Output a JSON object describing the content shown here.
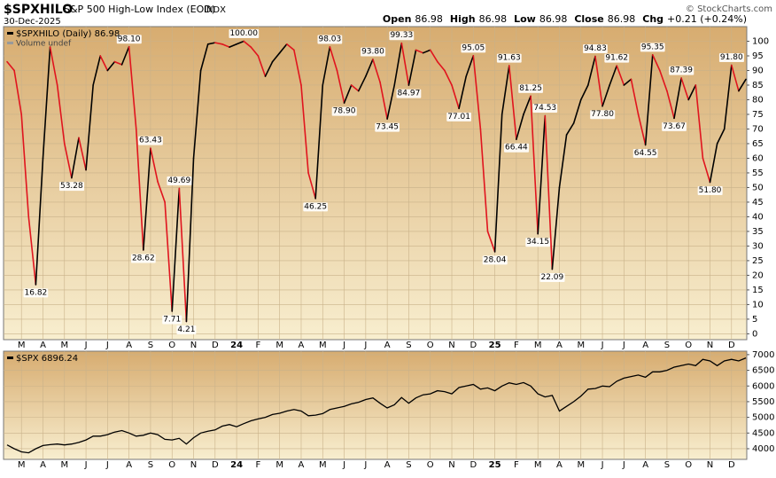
{
  "header": {
    "symbol": "$SPXHILO",
    "name": "S&P 500 High-Low Index (EOD)",
    "exchange": "INDX",
    "date": "30-Dec-2025",
    "copyright": "© StockCharts.com",
    "quote": [
      {
        "label": "Open",
        "value": "86.98"
      },
      {
        "label": "High",
        "value": "86.98"
      },
      {
        "label": "Low",
        "value": "86.98"
      },
      {
        "label": "Close",
        "value": "86.98"
      },
      {
        "label": "Chg",
        "value": "+0.21 (+0.24%)"
      }
    ]
  },
  "chart_data": [
    {
      "type": "line",
      "legend": [
        "$SPXHILO (Daily) 86.98",
        "Volume undef"
      ],
      "color_up": "#000000",
      "color_down": "#e0141e",
      "categories": [
        null,
        null,
        "M",
        null,
        null,
        "A",
        null,
        null,
        "M",
        null,
        null,
        "J",
        null,
        null,
        "J",
        null,
        null,
        "A",
        null,
        null,
        "S",
        null,
        null,
        "O",
        null,
        null,
        "N",
        null,
        null,
        "D",
        null,
        null,
        "24",
        null,
        null,
        "F",
        null,
        null,
        "M",
        null,
        null,
        "A",
        null,
        null,
        "M",
        null,
        null,
        "J",
        null,
        null,
        "J",
        null,
        null,
        "A",
        null,
        null,
        "S",
        null,
        null,
        "O",
        null,
        null,
        "N",
        null,
        null,
        "D",
        null,
        null,
        "25",
        null,
        null,
        "F",
        null,
        null,
        "M",
        null,
        null,
        "A",
        null,
        null,
        "M",
        null,
        null,
        "J",
        null,
        null,
        "J",
        null,
        null,
        "A",
        null,
        null,
        "S",
        null,
        null,
        "O",
        null,
        null,
        "N",
        null,
        null,
        "D",
        null,
        null
      ],
      "values": [
        93,
        90,
        75,
        40,
        16.82,
        60,
        98,
        85,
        65,
        53.28,
        67,
        56,
        85,
        95,
        90,
        93,
        92,
        98.1,
        70,
        28.62,
        63.43,
        52,
        45,
        7.71,
        49.69,
        4.21,
        60,
        90,
        99,
        99.5,
        99,
        98,
        99,
        100,
        98,
        95,
        88,
        93,
        96,
        99,
        97,
        85,
        55,
        46.25,
        85,
        98.03,
        90,
        78.9,
        85,
        83,
        88,
        93.8,
        86,
        73.45,
        85,
        99.33,
        84.97,
        97,
        96,
        97,
        93,
        90,
        85,
        77.01,
        88,
        95.05,
        70,
        35,
        28.04,
        75,
        91.63,
        66.44,
        75,
        81.25,
        34.15,
        74.53,
        22.09,
        50,
        68,
        72,
        80,
        85,
        94.83,
        77.8,
        85,
        91.62,
        85,
        87,
        75,
        64.55,
        95.35,
        90,
        83,
        73.67,
        87.39,
        80,
        85,
        60,
        51.8,
        65,
        70,
        91.8,
        83,
        86.98
      ],
      "value_labels": [
        null,
        null,
        null,
        null,
        "16.82",
        null,
        null,
        null,
        null,
        "53.28",
        null,
        null,
        null,
        null,
        null,
        null,
        null,
        "98.10",
        null,
        "28.62",
        "63.43",
        null,
        null,
        "7.71",
        "49.69",
        "4.21",
        null,
        null,
        null,
        null,
        null,
        null,
        null,
        "100.00",
        null,
        null,
        null,
        null,
        null,
        null,
        null,
        null,
        null,
        "46.25",
        null,
        "98.03",
        null,
        "78.90",
        null,
        null,
        null,
        "93.80",
        null,
        "73.45",
        null,
        "99.33",
        "84.97",
        null,
        null,
        null,
        null,
        null,
        null,
        "77.01",
        null,
        "95.05",
        null,
        null,
        "28.04",
        null,
        "91.63",
        "66.44",
        null,
        "81.25",
        "34.15",
        "74.53",
        "22.09",
        null,
        null,
        null,
        null,
        null,
        "94.83",
        "77.80",
        null,
        "91.62",
        null,
        null,
        null,
        "64.55",
        "95.35",
        null,
        null,
        "73.67",
        "87.39",
        null,
        null,
        null,
        "51.80",
        null,
        null,
        "91.80",
        null,
        null
      ],
      "ylim": [
        -2,
        105
      ],
      "yticks": [
        0,
        5,
        10,
        15,
        20,
        25,
        30,
        35,
        40,
        45,
        50,
        55,
        60,
        65,
        70,
        75,
        80,
        85,
        90,
        95,
        100
      ],
      "grid": true
    },
    {
      "type": "line",
      "legend": [
        "$SPX 6896.24"
      ],
      "color": "#000000",
      "categories": [
        null,
        null,
        "M",
        null,
        null,
        "A",
        null,
        null,
        "M",
        null,
        null,
        "J",
        null,
        null,
        "J",
        null,
        null,
        "A",
        null,
        null,
        "S",
        null,
        null,
        "O",
        null,
        null,
        "N",
        null,
        null,
        "D",
        null,
        null,
        "24",
        null,
        null,
        "F",
        null,
        null,
        "M",
        null,
        null,
        "A",
        null,
        null,
        "M",
        null,
        null,
        "J",
        null,
        null,
        "J",
        null,
        null,
        "A",
        null,
        null,
        "S",
        null,
        null,
        "O",
        null,
        null,
        "N",
        null,
        null,
        "D",
        null,
        null,
        "25",
        null,
        null,
        "F",
        null,
        null,
        "M",
        null,
        null,
        "A",
        null,
        null,
        "M",
        null,
        null,
        "J",
        null,
        null,
        "J",
        null,
        null,
        "A",
        null,
        null,
        "S",
        null,
        null,
        "O",
        null,
        null,
        "N",
        null,
        null,
        "D",
        null,
        null
      ],
      "values": [
        4120,
        4000,
        3900,
        3870,
        4000,
        4100,
        4130,
        4150,
        4120,
        4150,
        4200,
        4280,
        4400,
        4400,
        4450,
        4530,
        4580,
        4500,
        4400,
        4430,
        4500,
        4450,
        4300,
        4280,
        4330,
        4150,
        4350,
        4500,
        4560,
        4600,
        4720,
        4770,
        4700,
        4800,
        4890,
        4950,
        5000,
        5090,
        5130,
        5200,
        5250,
        5200,
        5050,
        5070,
        5120,
        5250,
        5300,
        5350,
        5430,
        5480,
        5570,
        5620,
        5450,
        5300,
        5400,
        5630,
        5450,
        5620,
        5720,
        5750,
        5850,
        5820,
        5750,
        5950,
        6000,
        6050,
        5900,
        5940,
        5850,
        6000,
        6100,
        6050,
        6110,
        6000,
        5750,
        5650,
        5700,
        5200,
        5350,
        5500,
        5680,
        5900,
        5920,
        6000,
        5980,
        6150,
        6250,
        6300,
        6350,
        6280,
        6450,
        6450,
        6500,
        6600,
        6650,
        6700,
        6650,
        6850,
        6800,
        6650,
        6800,
        6850,
        6800,
        6896.24
      ],
      "ylim": [
        3660,
        7110
      ],
      "yticks": [
        4000,
        4500,
        5000,
        5500,
        6000,
        6500,
        7000
      ],
      "grid": true
    }
  ]
}
